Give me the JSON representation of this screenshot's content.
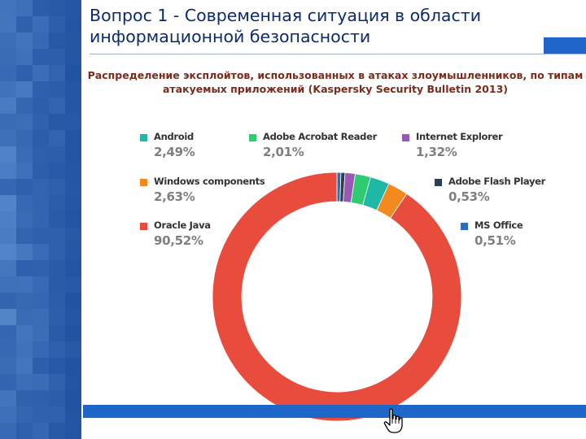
{
  "slide": {
    "title": "Вопрос 1 - Современная ситуация в области информационной безопасности",
    "subtitle": "Распределение эксплойтов, использованных в атаках злоумышленников, по типам атакуемых приложений (Kaspersky Security Bulletin 2013)"
  },
  "chart_data": {
    "type": "pie",
    "donut": true,
    "slices": [
      {
        "label": "Oracle Java",
        "value": 90.52,
        "display": "90,52%",
        "color": "#e84c3d"
      },
      {
        "label": "Windows components",
        "value": 2.63,
        "display": "2,63%",
        "color": "#f28a1d"
      },
      {
        "label": "Android",
        "value": 2.49,
        "display": "2,49%",
        "color": "#1fb8a6"
      },
      {
        "label": "Adobe Acrobat Reader",
        "value": 2.01,
        "display": "2,01%",
        "color": "#2ecc71"
      },
      {
        "label": "Internet Explorer",
        "value": 1.32,
        "display": "1,32%",
        "color": "#9b59b6"
      },
      {
        "label": "Adobe Flash Player",
        "value": 0.53,
        "display": "0,53%",
        "color": "#2c3e50"
      },
      {
        "label": "MS Office",
        "value": 0.51,
        "display": "0,51%",
        "color": "#2f6db5"
      }
    ]
  },
  "colors": {
    "sidebar": "#0b3f92",
    "accent_bar": "#1e66c8",
    "title_text": "#0d2a6e",
    "subtitle_text": "#7b2b1b"
  },
  "icons": {
    "cursor": "hand-pointer-icon"
  }
}
